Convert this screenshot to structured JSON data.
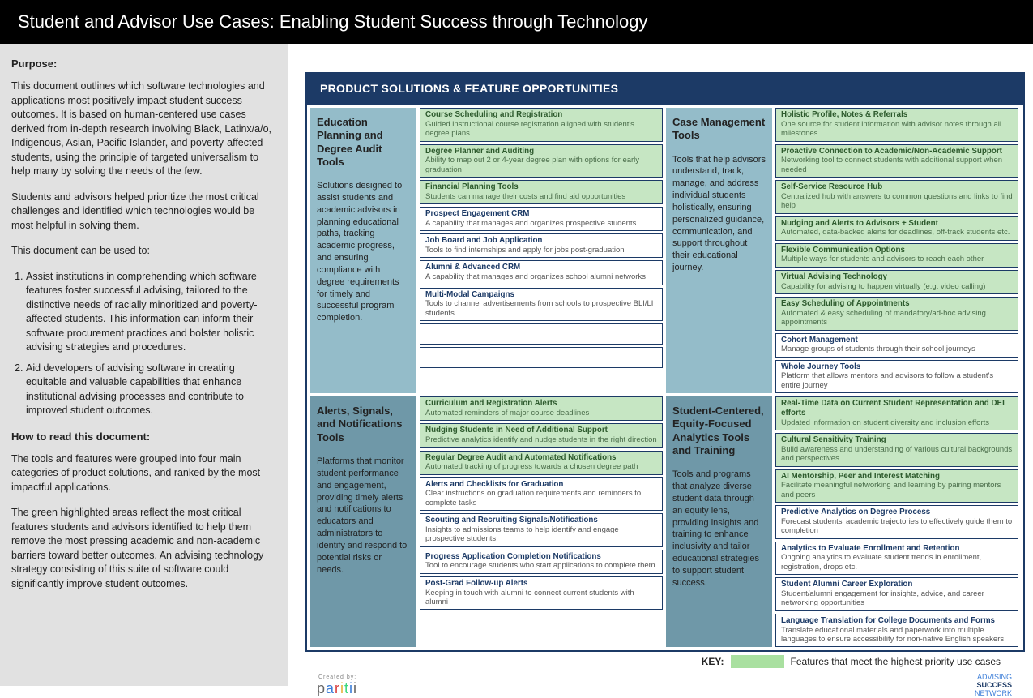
{
  "header": {
    "title": "Student and Advisor Use Cases: Enabling Student Success through Technology"
  },
  "sidebar": {
    "purpose_heading": "Purpose:",
    "p1": "This document outlines which software technologies and applications most positively impact student success outcomes. It is based on human-centered use cases derived from in-depth research involving Black, Latinx/a/o, Indigenous, Asian, Pacific Islander, and poverty-affected students, using the principle of targeted universalism to help many by solving the needs of the few.",
    "p2": "Students and advisors helped prioritize the most critical challenges and identified which technologies would be most helpful in solving them.",
    "p3": "This document can be used to:",
    "li1": "Assist institutions in comprehending which software features foster successful advising, tailored to the distinctive needs of racially minoritized and poverty-affected students. This information can inform their software procurement practices and bolster holistic advising strategies and procedures.",
    "li2": "Aid developers of advising software in creating equitable and valuable capabilities that enhance institutional advising processes and contribute to improved student outcomes.",
    "howto_heading": "How to read this document:",
    "p4": "The tools and features were grouped into four main categories of product solutions, and ranked by the most impactful applications.",
    "p5": "The green highlighted areas reflect the most critical features students and advisors identified to help them remove the most pressing academic and non-academic barriers toward better outcomes. An advising technology strategy consisting of this suite of software could significantly improve student outcomes."
  },
  "panel": {
    "title": "PRODUCT SOLUTIONS & FEATURE OPPORTUNITIES"
  },
  "colors": {
    "highlight": "#c6e6c3",
    "category_light": "#94bcc9",
    "category_dark": "#6f98a8",
    "panel_header": "#1c3a66"
  },
  "categories": [
    {
      "title": "Education Planning and Degree Audit Tools",
      "desc": "Solutions designed to assist students and academic advisors in planning educational paths, tracking academic progress, and ensuring compliance with degree requirements for timely and successful program completion.",
      "shade": "light",
      "features": [
        {
          "t": "Course Scheduling and Registration",
          "d": "Guided instructional course registration aligned with student's degree plans",
          "hi": true
        },
        {
          "t": "Degree Planner and Auditing",
          "d": "Ability to map out 2 or 4-year degree plan with options for early graduation",
          "hi": true
        },
        {
          "t": "Financial Planning Tools",
          "d": "Students can manage their costs and find aid opportunities",
          "hi": true
        },
        {
          "t": "Prospect Engagement CRM",
          "d": "A capability that manages and organizes prospective students",
          "hi": false
        },
        {
          "t": "Job Board and Job Application",
          "d": "Tools to find internships and apply for jobs post-graduation",
          "hi": false
        },
        {
          "t": "Alumni & Advanced CRM",
          "d": "A capability that manages and organizes school alumni networks",
          "hi": false
        },
        {
          "t": "Multi-Modal Campaigns",
          "d": "Tools to channel advertisements from schools to prospective BLI/LI students",
          "hi": false
        },
        {
          "t": "",
          "d": "",
          "hi": false,
          "empty": true
        },
        {
          "t": "",
          "d": "",
          "hi": false,
          "empty": true
        }
      ]
    },
    {
      "title": "Case Management Tools",
      "desc": "Tools that help advisors understand, track, manage, and address individual students holistically, ensuring personalized guidance, communication, and support throughout their educational journey.",
      "shade": "light",
      "features": [
        {
          "t": "Holistic Profile, Notes & Referrals",
          "d": "One source for student information with advisor notes through all milestones",
          "hi": true
        },
        {
          "t": "Proactive Connection to Academic/Non-Academic Support",
          "d": "Networking tool to connect students with additional support when needed",
          "hi": true
        },
        {
          "t": "Self-Service Resource Hub",
          "d": "Centralized hub with answers to common questions and links to find help",
          "hi": true
        },
        {
          "t": "Nudging and Alerts to Advisors + Student",
          "d": "Automated, data-backed alerts for deadlines, off-track students etc.",
          "hi": true
        },
        {
          "t": "Flexible Communication Options",
          "d": "Multiple ways for students and advisors to reach each other",
          "hi": true
        },
        {
          "t": "Virtual Advising Technology",
          "d": "Capability for advising to happen virtually (e.g. video calling)",
          "hi": true
        },
        {
          "t": "Easy Scheduling of Appointments",
          "d": "Automated & easy scheduling of mandatory/ad-hoc advising appointments",
          "hi": true
        },
        {
          "t": "Cohort Management",
          "d": "Manage groups of students through their school journeys",
          "hi": false
        },
        {
          "t": "Whole Journey Tools",
          "d": "Platform that allows mentors and advisors to follow a student's entire journey",
          "hi": false
        }
      ]
    },
    {
      "title": "Alerts, Signals, and Notifications Tools",
      "desc": "Platforms that monitor student performance and engagement, providing timely alerts and notifications to educators and administrators to identify and respond to potential risks or needs.",
      "shade": "dark",
      "features": [
        {
          "t": "Curriculum and Registration Alerts",
          "d": "Automated reminders of major course deadlines",
          "hi": true
        },
        {
          "t": "Nudging Students in Need of Additional Support",
          "d": "Predictive analytics identify and nudge students in the right direction",
          "hi": true
        },
        {
          "t": "Regular Degree Audit and Automated Notifications",
          "d": "Automated tracking of progress towards a chosen degree path",
          "hi": true
        },
        {
          "t": "Alerts and Checklists for Graduation",
          "d": "Clear instructions on graduation requirements and reminders to complete tasks",
          "hi": false
        },
        {
          "t": "Scouting and Recruiting Signals/Notifications",
          "d": "Insights to admissions teams to help identify and engage prospective students",
          "hi": false
        },
        {
          "t": "Progress Application Completion Notifications",
          "d": "Tool to encourage students who start applications to complete them",
          "hi": false
        },
        {
          "t": "Post-Grad Follow-up Alerts",
          "d": "Keeping in touch with alumni to connect current students with alumni",
          "hi": false
        }
      ]
    },
    {
      "title": "Student-Centered, Equity-Focused Analytics Tools and Training",
      "desc": "Tools and programs that analyze diverse student data through an equity lens, providing insights and training to enhance inclusivity and tailor educational strategies to support student success.",
      "shade": "dark",
      "features": [
        {
          "t": "Real-Time Data on Current Student Representation and DEI efforts",
          "d": "Updated information on student diversity and inclusion efforts",
          "hi": true
        },
        {
          "t": "Cultural Sensitivity Training",
          "d": "Build awareness and understanding of various cultural backgrounds and perspectives",
          "hi": true
        },
        {
          "t": "AI Mentorship, Peer and Interest Matching",
          "d": "Facilitate meaningful networking and learning by pairing mentors and peers",
          "hi": true
        },
        {
          "t": "Predictive Analytics on Degree Process",
          "d": "Forecast students' academic trajectories to effectively guide them to completion",
          "hi": false
        },
        {
          "t": "Analytics to Evaluate Enrollment and Retention",
          "d": "Ongoing analytics to evaluate student trends in enrollment, registration, drops etc.",
          "hi": false
        },
        {
          "t": "Student Alumni Career Exploration",
          "d": "Student/alumni engagement for insights, advice, and career networking opportunities",
          "hi": false
        },
        {
          "t": "Language Translation for College Documents and Forms",
          "d": "Translate educational materials and paperwork into multiple languages to ensure accessibility for non-native English speakers",
          "hi": false
        }
      ]
    }
  ],
  "key": {
    "label": "KEY:",
    "text": "Features that meet the highest priority use cases"
  },
  "footer": {
    "created_by": "Created by:",
    "left_logo": "paritii",
    "right_logo_l1": "ADVISING",
    "right_logo_l2": "SUCCESS",
    "right_logo_l3": "NETWORK"
  }
}
